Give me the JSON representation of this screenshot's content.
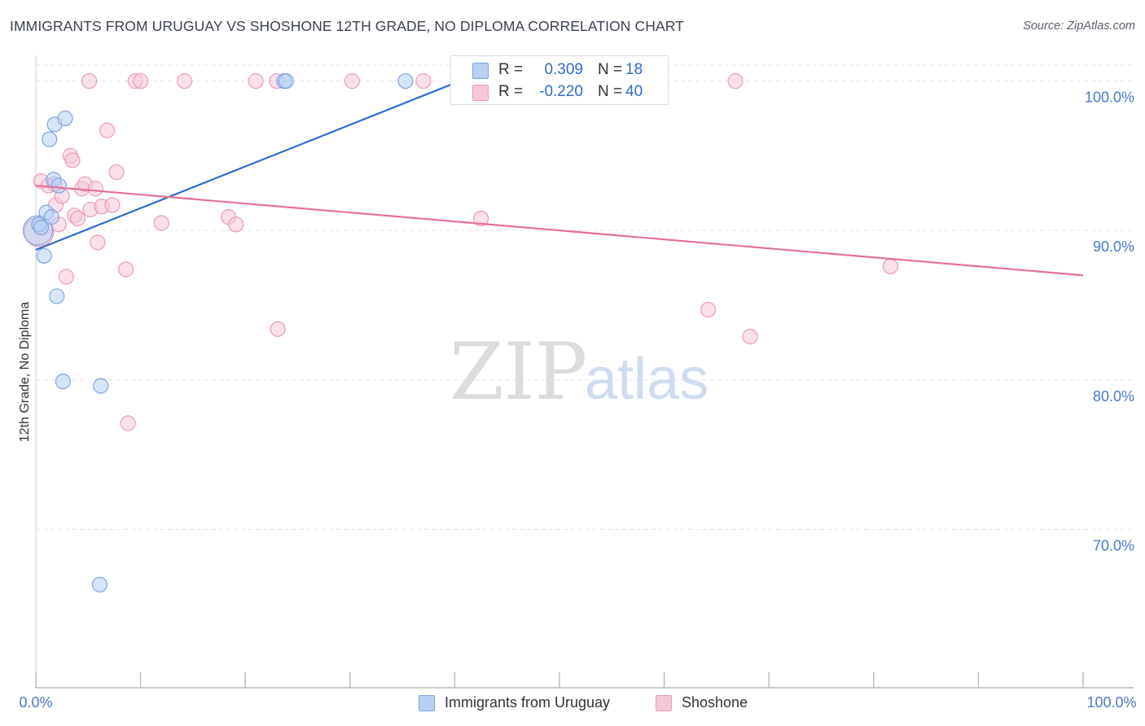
{
  "title": "IMMIGRANTS FROM URUGUAY VS SHOSHONE 12TH GRADE, NO DIPLOMA CORRELATION CHART",
  "source": "Source: ZipAtlas.com",
  "watermark": {
    "zip": "ZIP",
    "atlas": "atlas"
  },
  "colors": {
    "blue": "#2f6cd0",
    "blue_fill": "#b7cff3",
    "blue_edge": "#7fa4e0",
    "pink": "#e36f98",
    "pink_fill": "#f6c7d7",
    "pink_edge": "#ec9bb8",
    "tick_label": "#4a78c7",
    "grid": "#e3e3e3"
  },
  "stats": {
    "rows": [
      {
        "r_label": "R =",
        "r_value": "0.309",
        "n_label": "N =",
        "n_value": "18"
      },
      {
        "r_label": "R =",
        "r_value": "-0.220",
        "n_label": "N =",
        "n_value": "40"
      }
    ]
  },
  "legend": {
    "series1": "Immigrants from Uruguay",
    "series2": "Shoshone"
  },
  "chart_data": {
    "type": "scatter",
    "title": "IMMIGRANTS FROM URUGUAY VS SHOSHONE 12TH GRADE, NO DIPLOMA CORRELATION CHART",
    "xlabel": "",
    "ylabel": "12th Grade, No Diploma",
    "xlim": [
      0,
      100
    ],
    "ylim": [
      59.4,
      101.5
    ],
    "x_tick_labels": {
      "left": "0.0%",
      "right": "100.0%"
    },
    "y_ticks": [
      {
        "value": 100,
        "label": "100.0%"
      },
      {
        "value": 90,
        "label": "90.0%"
      },
      {
        "value": 80,
        "label": "80.0%"
      },
      {
        "value": 70,
        "label": "70.0%"
      }
    ],
    "grid": true,
    "legend_position": "bottom-center",
    "series": [
      {
        "name": "Immigrants from Uruguay",
        "color": "blue",
        "R": 0.309,
        "N": 18,
        "trend": {
          "x0": 0,
          "y0": 88.7,
          "x1": 40.5,
          "y1": 100.0
        },
        "points": [
          [
            0.2,
            90.0,
            18
          ],
          [
            0.3,
            90.4,
            9
          ],
          [
            0.5,
            90.2,
            9
          ],
          [
            0.8,
            88.3,
            9
          ],
          [
            1.0,
            91.2,
            9
          ],
          [
            1.3,
            96.1,
            9
          ],
          [
            1.5,
            90.9,
            9
          ],
          [
            1.7,
            93.4,
            9
          ],
          [
            1.8,
            97.1,
            9
          ],
          [
            2.0,
            85.6,
            9
          ],
          [
            2.2,
            93.0,
            9
          ],
          [
            2.6,
            79.9,
            9
          ],
          [
            2.8,
            97.5,
            9
          ],
          [
            6.1,
            66.3,
            9
          ],
          [
            6.2,
            79.6,
            9
          ],
          [
            23.7,
            100.0,
            9
          ],
          [
            35.3,
            100.0,
            9
          ],
          [
            23.9,
            100.0,
            9
          ]
        ]
      },
      {
        "name": "Shoshone",
        "color": "pink",
        "R": -0.22,
        "N": 40,
        "trend": {
          "x0": 0,
          "y0": 93.0,
          "x1": 100,
          "y1": 87.0
        },
        "points": [
          [
            0.3,
            89.9,
            18
          ],
          [
            0.5,
            93.3,
            9
          ],
          [
            1.2,
            93.0,
            9
          ],
          [
            1.8,
            93.1,
            9
          ],
          [
            1.9,
            91.7,
            9
          ],
          [
            2.2,
            90.4,
            9
          ],
          [
            2.5,
            92.3,
            9
          ],
          [
            2.9,
            86.9,
            9
          ],
          [
            3.3,
            95.0,
            9
          ],
          [
            3.5,
            94.7,
            9
          ],
          [
            3.7,
            91.0,
            9
          ],
          [
            4.0,
            90.8,
            9
          ],
          [
            4.4,
            92.8,
            9
          ],
          [
            4.7,
            93.1,
            9
          ],
          [
            5.1,
            100.0,
            9
          ],
          [
            5.2,
            91.4,
            9
          ],
          [
            5.7,
            92.8,
            9
          ],
          [
            5.9,
            89.2,
            9
          ],
          [
            6.3,
            91.6,
            9
          ],
          [
            6.8,
            96.7,
            9
          ],
          [
            7.3,
            91.7,
            9
          ],
          [
            7.7,
            93.9,
            9
          ],
          [
            8.6,
            87.4,
            9
          ],
          [
            8.8,
            77.1,
            9
          ],
          [
            9.5,
            100.0,
            9
          ],
          [
            10.0,
            100.0,
            9
          ],
          [
            12.0,
            90.5,
            9
          ],
          [
            14.2,
            100.0,
            9
          ],
          [
            18.4,
            90.9,
            9
          ],
          [
            19.1,
            90.4,
            9
          ],
          [
            21.0,
            100.0,
            9
          ],
          [
            23.0,
            100.0,
            9
          ],
          [
            23.1,
            83.4,
            9
          ],
          [
            30.2,
            100.0,
            9
          ],
          [
            37.0,
            100.0,
            9
          ],
          [
            42.5,
            90.8,
            9
          ],
          [
            64.2,
            84.7,
            9
          ],
          [
            66.8,
            100.0,
            9
          ],
          [
            68.2,
            82.9,
            9
          ],
          [
            81.6,
            87.6,
            9
          ]
        ]
      }
    ]
  }
}
